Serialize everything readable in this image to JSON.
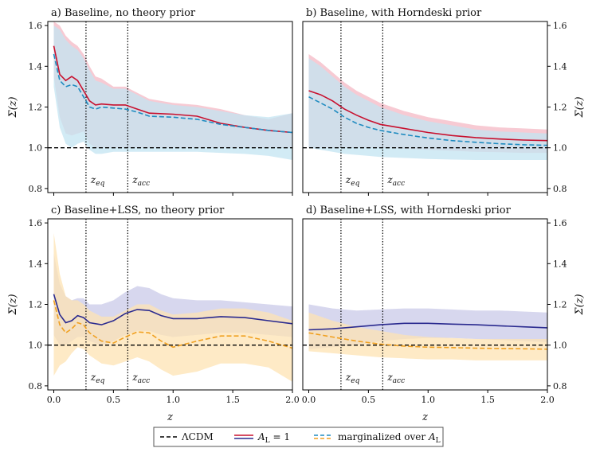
{
  "chart_data": [
    {
      "type": "area",
      "title": "a) Baseline, no theory prior",
      "ylabel": "Σ(z)",
      "xlabel": "",
      "xlim": [
        -0.05,
        2.0
      ],
      "ylim": [
        0.78,
        1.62
      ],
      "yticks": [
        "0.8",
        "1.0",
        "1.2",
        "1.4",
        "1.6"
      ],
      "xticks": [],
      "markers": [
        {
          "label": "z_eq",
          "x": 0.27
        },
        {
          "label": "z_acc",
          "x": 0.62
        }
      ],
      "reference": {
        "name": "ΛCDM",
        "value": 1.0
      },
      "series": [
        {
          "name": "A_L = 1",
          "color": "#c8102e",
          "dash": "",
          "x": [
            0,
            0.05,
            0.1,
            0.15,
            0.2,
            0.25,
            0.3,
            0.35,
            0.4,
            0.5,
            0.6,
            0.7,
            0.8,
            1.0,
            1.2,
            1.4,
            1.6,
            1.8,
            2.0
          ],
          "mean": [
            1.5,
            1.36,
            1.33,
            1.35,
            1.33,
            1.28,
            1.23,
            1.21,
            1.215,
            1.21,
            1.21,
            1.19,
            1.17,
            1.165,
            1.155,
            1.12,
            1.1,
            1.085,
            1.075
          ],
          "upper": [
            1.62,
            1.6,
            1.55,
            1.52,
            1.5,
            1.46,
            1.4,
            1.35,
            1.34,
            1.3,
            1.3,
            1.27,
            1.24,
            1.22,
            1.21,
            1.19,
            1.16,
            1.14,
            1.17
          ],
          "lower": [
            1.35,
            1.15,
            1.07,
            1.06,
            1.07,
            1.08,
            1.02,
            1.0,
            1.0,
            1.0,
            1.0,
            1.0,
            1.0,
            1.0,
            1.0,
            1.0,
            1.0,
            1.0,
            1.0
          ],
          "band_color": "#f4b8c4"
        },
        {
          "name": "marginalized over A_L",
          "color": "#1f8bc0",
          "dash": "6,3",
          "x": [
            0,
            0.05,
            0.1,
            0.15,
            0.2,
            0.25,
            0.3,
            0.35,
            0.4,
            0.5,
            0.6,
            0.7,
            0.8,
            1.0,
            1.2,
            1.4,
            1.6,
            1.8,
            2.0
          ],
          "mean": [
            1.46,
            1.33,
            1.3,
            1.31,
            1.3,
            1.25,
            1.2,
            1.19,
            1.2,
            1.195,
            1.19,
            1.175,
            1.155,
            1.15,
            1.14,
            1.115,
            1.1,
            1.085,
            1.075
          ],
          "upper": [
            1.6,
            1.58,
            1.53,
            1.5,
            1.48,
            1.44,
            1.38,
            1.33,
            1.32,
            1.29,
            1.29,
            1.26,
            1.23,
            1.21,
            1.2,
            1.18,
            1.16,
            1.15,
            1.17
          ],
          "lower": [
            1.3,
            1.1,
            1.02,
            1.0,
            1.02,
            1.03,
            0.99,
            0.97,
            0.97,
            0.98,
            0.98,
            0.98,
            0.98,
            0.98,
            0.98,
            0.975,
            0.97,
            0.96,
            0.94
          ],
          "band_color": "#c3e4f2"
        }
      ]
    },
    {
      "type": "area",
      "title": "b) Baseline, with Horndeski prior",
      "ylabel": "Σ(z)",
      "xlabel": "",
      "xlim": [
        -0.05,
        2.0
      ],
      "ylim": [
        0.78,
        1.62
      ],
      "yticks": [
        "0.8",
        "1.0",
        "1.2",
        "1.4",
        "1.6"
      ],
      "xticks": [],
      "markers": [
        {
          "label": "z_eq",
          "x": 0.27
        },
        {
          "label": "z_acc",
          "x": 0.62
        }
      ],
      "reference": {
        "name": "ΛCDM",
        "value": 1.0
      },
      "series": [
        {
          "name": "A_L = 1",
          "color": "#c8102e",
          "dash": "",
          "x": [
            0,
            0.1,
            0.2,
            0.3,
            0.4,
            0.5,
            0.6,
            0.8,
            1.0,
            1.2,
            1.4,
            1.6,
            1.8,
            2.0
          ],
          "mean": [
            1.28,
            1.26,
            1.23,
            1.19,
            1.16,
            1.135,
            1.115,
            1.095,
            1.075,
            1.06,
            1.05,
            1.043,
            1.038,
            1.035
          ],
          "upper": [
            1.46,
            1.42,
            1.37,
            1.32,
            1.28,
            1.25,
            1.22,
            1.18,
            1.15,
            1.13,
            1.11,
            1.1,
            1.095,
            1.09
          ],
          "lower": [
            1.0,
            1.0,
            1.0,
            1.0,
            1.0,
            1.0,
            1.0,
            0.995,
            0.99,
            0.985,
            0.98,
            0.978,
            0.975,
            0.975
          ],
          "band_color": "#f4b8c4"
        },
        {
          "name": "marginalized over A_L",
          "color": "#1f8bc0",
          "dash": "6,3",
          "x": [
            0,
            0.1,
            0.2,
            0.3,
            0.4,
            0.5,
            0.6,
            0.8,
            1.0,
            1.2,
            1.4,
            1.6,
            1.8,
            2.0
          ],
          "mean": [
            1.25,
            1.22,
            1.19,
            1.15,
            1.12,
            1.1,
            1.085,
            1.065,
            1.048,
            1.035,
            1.027,
            1.02,
            1.015,
            1.012
          ],
          "upper": [
            1.44,
            1.4,
            1.35,
            1.3,
            1.26,
            1.23,
            1.2,
            1.16,
            1.13,
            1.11,
            1.09,
            1.08,
            1.075,
            1.07
          ],
          "lower": [
            1.0,
            0.99,
            0.98,
            0.97,
            0.965,
            0.96,
            0.955,
            0.95,
            0.945,
            0.942,
            0.94,
            0.94,
            0.94,
            0.94
          ],
          "band_color": "#c3e4f2"
        }
      ]
    },
    {
      "type": "area",
      "title": "c) Baseline+LSS, no theory prior",
      "ylabel": "Σ(z)",
      "xlabel": "z",
      "xlim": [
        -0.05,
        2.0
      ],
      "ylim": [
        0.78,
        1.62
      ],
      "yticks": [
        "0.8",
        "1.0",
        "1.2",
        "1.4",
        "1.6"
      ],
      "xticks": [
        "0.0",
        "0.5",
        "1.0",
        "1.5",
        "2.0"
      ],
      "markers": [
        {
          "label": "z_eq",
          "x": 0.27
        },
        {
          "label": "z_acc",
          "x": 0.62
        }
      ],
      "reference": {
        "name": "ΛCDM",
        "value": 1.0
      },
      "series": [
        {
          "name": "A_L = 1",
          "color": "#2a2a8f",
          "dash": "",
          "x": [
            0,
            0.05,
            0.1,
            0.15,
            0.2,
            0.25,
            0.3,
            0.4,
            0.5,
            0.6,
            0.7,
            0.8,
            0.9,
            1.0,
            1.2,
            1.4,
            1.6,
            1.8,
            2.0
          ],
          "mean": [
            1.25,
            1.15,
            1.11,
            1.12,
            1.145,
            1.135,
            1.11,
            1.1,
            1.12,
            1.155,
            1.175,
            1.17,
            1.145,
            1.13,
            1.13,
            1.14,
            1.135,
            1.12,
            1.105
          ],
          "upper": [
            1.45,
            1.3,
            1.24,
            1.22,
            1.23,
            1.23,
            1.2,
            1.2,
            1.22,
            1.26,
            1.29,
            1.28,
            1.25,
            1.23,
            1.22,
            1.22,
            1.21,
            1.2,
            1.19
          ],
          "lower": [
            1.05,
            1.0,
            1.0,
            1.02,
            1.04,
            1.04,
            1.02,
            1.0,
            1.02,
            1.05,
            1.07,
            1.07,
            1.05,
            1.04,
            1.05,
            1.06,
            1.06,
            1.05,
            1.04
          ],
          "band_color": "#c9c9e8"
        },
        {
          "name": "marginalized over A_L",
          "color": "#f0a020",
          "dash": "6,3",
          "x": [
            0,
            0.05,
            0.1,
            0.15,
            0.2,
            0.25,
            0.3,
            0.4,
            0.5,
            0.6,
            0.7,
            0.8,
            0.9,
            1.0,
            1.2,
            1.4,
            1.6,
            1.8,
            2.0
          ],
          "mean": [
            1.22,
            1.1,
            1.06,
            1.08,
            1.11,
            1.1,
            1.06,
            1.02,
            1.01,
            1.04,
            1.065,
            1.06,
            1.02,
            0.99,
            1.02,
            1.045,
            1.045,
            1.02,
            0.985
          ],
          "upper": [
            1.55,
            1.35,
            1.24,
            1.22,
            1.22,
            1.2,
            1.17,
            1.14,
            1.14,
            1.17,
            1.2,
            1.2,
            1.17,
            1.15,
            1.16,
            1.18,
            1.18,
            1.16,
            1.12
          ],
          "lower": [
            0.85,
            0.9,
            0.92,
            0.96,
            0.99,
            0.98,
            0.95,
            0.91,
            0.9,
            0.92,
            0.94,
            0.92,
            0.88,
            0.85,
            0.87,
            0.91,
            0.91,
            0.89,
            0.82
          ],
          "band_color": "#fde3b3"
        }
      ]
    },
    {
      "type": "area",
      "title": "d) Baseline+LSS, with Horndeski prior",
      "ylabel": "Σ(z)",
      "xlabel": "z",
      "xlim": [
        -0.05,
        2.0
      ],
      "ylim": [
        0.78,
        1.62
      ],
      "yticks": [
        "0.8",
        "1.0",
        "1.2",
        "1.4",
        "1.6"
      ],
      "xticks": [
        "0.0",
        "0.5",
        "1.0",
        "1.5",
        "2.0"
      ],
      "markers": [
        {
          "label": "z_eq",
          "x": 0.27
        },
        {
          "label": "z_acc",
          "x": 0.62
        }
      ],
      "reference": {
        "name": "ΛCDM",
        "value": 1.0
      },
      "series": [
        {
          "name": "A_L = 1",
          "color": "#2a2a8f",
          "dash": "",
          "x": [
            0,
            0.2,
            0.4,
            0.6,
            0.8,
            1.0,
            1.2,
            1.4,
            1.6,
            1.8,
            2.0
          ],
          "mean": [
            1.075,
            1.08,
            1.09,
            1.1,
            1.107,
            1.107,
            1.103,
            1.1,
            1.095,
            1.09,
            1.085
          ],
          "upper": [
            1.2,
            1.18,
            1.17,
            1.175,
            1.18,
            1.18,
            1.175,
            1.17,
            1.17,
            1.165,
            1.16
          ],
          "lower": [
            0.98,
            0.99,
            1.0,
            1.02,
            1.03,
            1.035,
            1.035,
            1.03,
            1.025,
            1.02,
            1.015
          ],
          "band_color": "#c9c9e8"
        },
        {
          "name": "marginalized over A_L",
          "color": "#f0a020",
          "dash": "6,3",
          "x": [
            0,
            0.2,
            0.4,
            0.6,
            0.8,
            1.0,
            1.2,
            1.4,
            1.6,
            1.8,
            2.0
          ],
          "mean": [
            1.06,
            1.04,
            1.02,
            1.005,
            0.995,
            0.99,
            0.988,
            0.985,
            0.983,
            0.982,
            0.98
          ],
          "upper": [
            1.16,
            1.12,
            1.09,
            1.07,
            1.05,
            1.04,
            1.035,
            1.03,
            1.03,
            1.03,
            1.03
          ],
          "lower": [
            0.97,
            0.96,
            0.95,
            0.94,
            0.935,
            0.93,
            0.93,
            0.925,
            0.925,
            0.925,
            0.925
          ],
          "band_color": "#fde3b3"
        }
      ]
    }
  ],
  "legend": {
    "items": [
      {
        "label": "ΛCDM",
        "kind": "lcdm"
      },
      {
        "label": "A_L = 1",
        "kind": "al1"
      },
      {
        "label": "marginalized over A_L",
        "kind": "marg"
      }
    ]
  },
  "colors": {
    "lcdm": "#000000",
    "red": "#c8102e",
    "navy": "#2a2a8f",
    "blue": "#1f8bc0",
    "orange": "#f0a020"
  }
}
